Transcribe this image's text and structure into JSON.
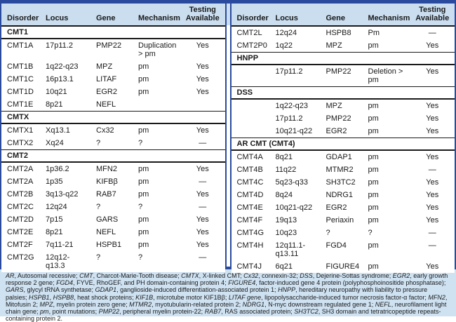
{
  "colors": {
    "navy": "#2a4a9d",
    "header_bg": "#cadef0",
    "footnote_bg": "#cfe2f2",
    "rule_black": "#1a1a1a",
    "text": "#1a1a1a"
  },
  "columns": [
    "Disorder",
    "Locus",
    "Gene",
    "Mechanism",
    "Testing\nAvailable"
  ],
  "tables": [
    {
      "name": "left",
      "rows": [
        {
          "section": "CMT1"
        },
        {
          "disorder": "CMT1A",
          "locus": "17p11.2",
          "gene": "PMP22",
          "mechanism": "Duplication\n> pm",
          "testing": "Yes"
        },
        {
          "disorder": "CMT1B",
          "locus": "1q22-q23",
          "gene": "MPZ",
          "mechanism": "pm",
          "testing": "Yes"
        },
        {
          "disorder": "CMT1C",
          "locus": "16p13.1",
          "gene": "LITAF",
          "mechanism": "pm",
          "testing": "Yes"
        },
        {
          "disorder": "CMT1D",
          "locus": "10q21",
          "gene": "EGR2",
          "mechanism": "pm",
          "testing": "Yes"
        },
        {
          "disorder": "CMT1E",
          "locus": "8p21",
          "gene": "NEFL",
          "mechanism": "",
          "testing": ""
        },
        {
          "section": "CMTX"
        },
        {
          "disorder": "CMTX1",
          "locus": "Xq13.1",
          "gene": "Cx32",
          "mechanism": "pm",
          "testing": "Yes"
        },
        {
          "disorder": "CMTX2",
          "locus": "Xq24",
          "gene": "?",
          "mechanism": "?",
          "testing": "—"
        },
        {
          "section": "CMT2"
        },
        {
          "disorder": "CMT2A",
          "locus": "1p36.2",
          "gene": "MFN2",
          "mechanism": "pm",
          "testing": "Yes"
        },
        {
          "disorder": "CMT2A",
          "locus": "1p35",
          "gene": "KIFBβ",
          "mechanism": "pm",
          "testing": "—"
        },
        {
          "disorder": "CMT2B",
          "locus": "3q13-q22",
          "gene": "RAB7",
          "mechanism": "pm",
          "testing": "Yes"
        },
        {
          "disorder": "CMT2C",
          "locus": "12q24",
          "gene": "?",
          "mechanism": "?",
          "testing": "—"
        },
        {
          "disorder": "CMT2D",
          "locus": "7p15",
          "gene": "GARS",
          "mechanism": "pm",
          "testing": "Yes"
        },
        {
          "disorder": "CMT2E",
          "locus": "8p21",
          "gene": "NEFL",
          "mechanism": "pm",
          "testing": "Yes"
        },
        {
          "disorder": "CMT2F",
          "locus": "7q11-21",
          "gene": "HSPB1",
          "mechanism": "pm",
          "testing": "Yes"
        },
        {
          "disorder": "CMT2G",
          "locus": "12q12-\nq13.3",
          "gene": "?",
          "mechanism": "?",
          "testing": "—"
        }
      ]
    },
    {
      "name": "right",
      "rows": [
        {
          "disorder": "CMT2L",
          "locus": "12q24",
          "gene": "HSPB8",
          "mechanism": "Pm",
          "testing": "—"
        },
        {
          "disorder": "CMT2P0",
          "locus": "1q22",
          "gene": "MPZ",
          "mechanism": "pm",
          "testing": "Yes"
        },
        {
          "section": "HNPP"
        },
        {
          "disorder": "",
          "locus": "17p11.2",
          "gene": "PMP22",
          "mechanism": "Deletion >\npm",
          "testing": "Yes"
        },
        {
          "section": "DSS"
        },
        {
          "disorder": "",
          "locus": "1q22-q23",
          "gene": "MPZ",
          "mechanism": "pm",
          "testing": "Yes"
        },
        {
          "disorder": "",
          "locus": "17p11.2",
          "gene": "PMP22",
          "mechanism": "pm",
          "testing": "Yes"
        },
        {
          "disorder": "",
          "locus": "10q21-q22",
          "gene": "EGR2",
          "mechanism": "pm",
          "testing": "Yes"
        },
        {
          "section": "AR CMT (CMT4)"
        },
        {
          "disorder": "CMT4A",
          "locus": "8q21",
          "gene": "GDAP1",
          "mechanism": "pm",
          "testing": "Yes"
        },
        {
          "disorder": "CMT4B",
          "locus": "11q22",
          "gene": "MTMR2",
          "mechanism": "pm",
          "testing": "—"
        },
        {
          "disorder": "CMT4C",
          "locus": "5q23-q33",
          "gene": "SH3TC2",
          "mechanism": "pm",
          "testing": "Yes"
        },
        {
          "disorder": "CMT4D",
          "locus": "8q24",
          "gene": "NDRG1",
          "mechanism": "pm",
          "testing": "Yes"
        },
        {
          "disorder": "CMT4E",
          "locus": "10q21-q22",
          "gene": "EGR2",
          "mechanism": "pm",
          "testing": "Yes"
        },
        {
          "disorder": "CMT4F",
          "locus": "19q13",
          "gene": "Periaxin",
          "mechanism": "pm",
          "testing": "Yes"
        },
        {
          "disorder": "CMT4G",
          "locus": "10q23",
          "gene": "?",
          "mechanism": "?",
          "testing": "—"
        },
        {
          "disorder": "CMT4H",
          "locus": "12q11.1-\nq13.11",
          "gene": "FGD4",
          "mechanism": "pm",
          "testing": "—"
        },
        {
          "disorder": "CMT4J",
          "locus": "6q21",
          "gene": "FIGURE4",
          "mechanism": "pm",
          "testing": "Yes"
        }
      ]
    }
  ],
  "footnote": {
    "segments": [
      {
        "i": true,
        "t": "AR"
      },
      {
        "i": false,
        "t": ", Autosomal recessive; "
      },
      {
        "i": true,
        "t": "CMT"
      },
      {
        "i": false,
        "t": ", Charcot-Marie-Tooth disease; "
      },
      {
        "i": true,
        "t": "CMTX"
      },
      {
        "i": false,
        "t": ", X-linked CMT; "
      },
      {
        "i": true,
        "t": "Cx32"
      },
      {
        "i": false,
        "t": ", connexin-32; "
      },
      {
        "i": true,
        "t": "DSS"
      },
      {
        "i": false,
        "t": ", Dejerine-Sottas syndrome; "
      },
      {
        "i": true,
        "t": "EGR2"
      },
      {
        "i": false,
        "t": ", early growth response 2 gene; "
      },
      {
        "i": true,
        "t": "FGD4"
      },
      {
        "i": false,
        "t": ", FYVE, RhoGEF, and PH domain-containing protein 4; "
      },
      {
        "i": true,
        "t": "FIGURE4"
      },
      {
        "i": false,
        "t": ", factor-induced gene 4 protein (polyphosphoinositide phosphatase); "
      },
      {
        "i": true,
        "t": "GARS"
      },
      {
        "i": false,
        "t": ", glycyl tRNA synthetase; "
      },
      {
        "i": true,
        "t": "GDAP1"
      },
      {
        "i": false,
        "t": ", ganglioside-induced differentiation-associated protein 1; "
      },
      {
        "i": true,
        "t": "HNPP"
      },
      {
        "i": false,
        "t": ", hereditary neuropathy with liability to pressure palsies; "
      },
      {
        "i": true,
        "t": "HSPB1"
      },
      {
        "i": false,
        "t": ", "
      },
      {
        "i": true,
        "t": "HSPB8"
      },
      {
        "i": false,
        "t": ", heat shock proteins; "
      },
      {
        "i": true,
        "t": "KIF1B"
      },
      {
        "i": false,
        "t": ", microtube motor KIF1Bβ; "
      },
      {
        "i": true,
        "t": "LITAF gene"
      },
      {
        "i": false,
        "t": ", lipopolysaccharide-induced tumor necrosis factor-α factor; "
      },
      {
        "i": true,
        "t": "MFN2"
      },
      {
        "i": false,
        "t": ", Mitofusin 2; "
      },
      {
        "i": true,
        "t": "MPZ"
      },
      {
        "i": false,
        "t": ", myelin protein zero gene; "
      },
      {
        "i": true,
        "t": "MTMR2"
      },
      {
        "i": false,
        "t": ", myotubularin-related protein 2; "
      },
      {
        "i": true,
        "t": "NDRG1"
      },
      {
        "i": false,
        "t": ", N-myc downstream regulated gene 1; "
      },
      {
        "i": true,
        "t": "NEFL"
      },
      {
        "i": false,
        "t": ", neurofilament light chain gene; "
      },
      {
        "i": true,
        "t": "pm"
      },
      {
        "i": false,
        "t": ", point mutations; "
      },
      {
        "i": true,
        "t": "PMP22"
      },
      {
        "i": false,
        "t": ", peripheral myelin protein-22; "
      },
      {
        "i": true,
        "t": "RAB7"
      },
      {
        "i": false,
        "t": ", RAS associated protein; "
      },
      {
        "i": true,
        "t": "SH3TC2"
      },
      {
        "i": false,
        "t": ", SH3 domain and tetratricopeptide repeats-containing protein 2."
      }
    ]
  }
}
